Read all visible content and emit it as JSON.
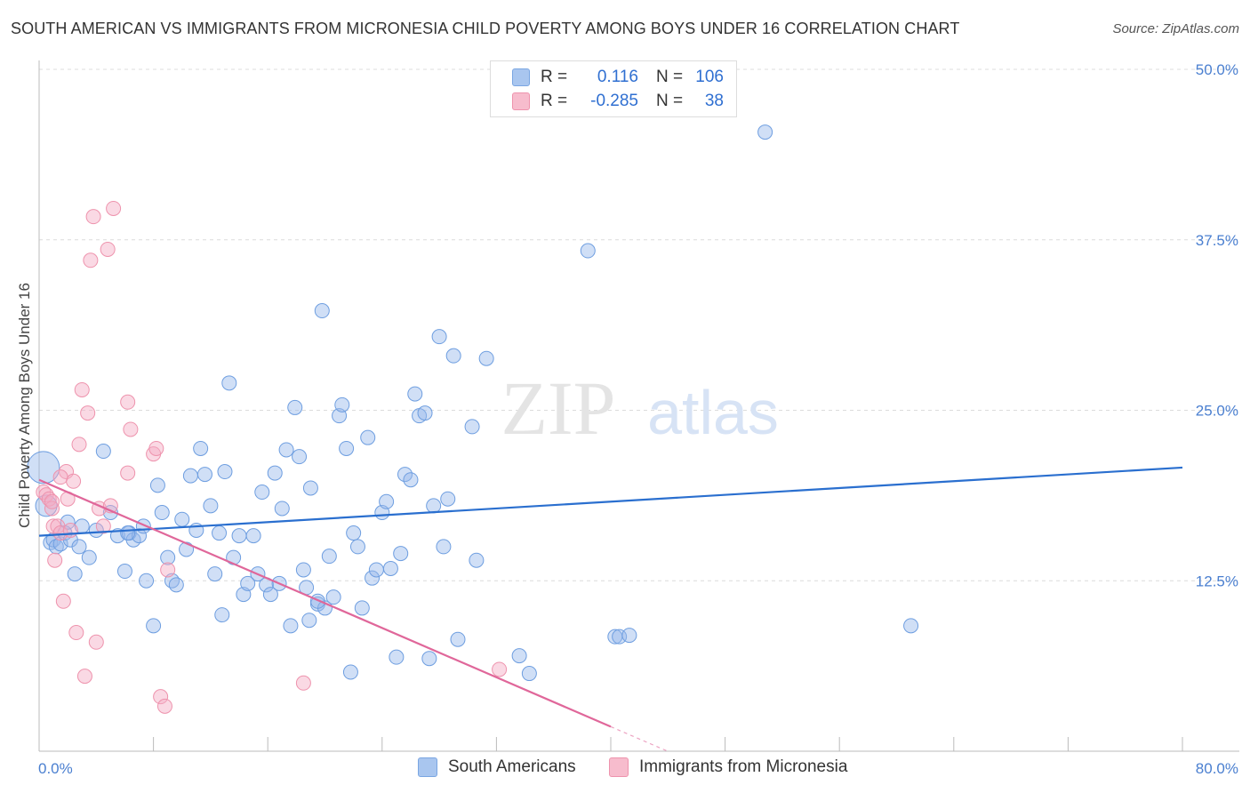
{
  "title": "SOUTH AMERICAN VS IMMIGRANTS FROM MICRONESIA CHILD POVERTY AMONG BOYS UNDER 16 CORRELATION CHART",
  "source": "Source: ZipAtlas.com",
  "watermark": {
    "zip": "ZIP",
    "atlas": "atlas"
  },
  "legend_top": [
    {
      "r_label": "R =",
      "r_value": "0.116",
      "n_label": "N =",
      "n_value": "106",
      "color": "#a9c6ef",
      "border": "#7aa6e2"
    },
    {
      "r_label": "R =",
      "r_value": "-0.285",
      "n_label": "N =",
      "n_value": "38",
      "color": "#f7bccd",
      "border": "#ee93ad"
    }
  ],
  "legend_bottom": [
    {
      "label": "South Americans",
      "color": "#a9c6ef",
      "border": "#7aa6e2"
    },
    {
      "label": "Immigrants from Micronesia",
      "color": "#f7bccd",
      "border": "#ee93ad"
    }
  ],
  "colors": {
    "blue_fill": "rgba(150,185,235,0.45)",
    "blue_stroke": "#6e9ee0",
    "blue_line": "#2a6fcf",
    "pink_fill": "rgba(245,170,195,0.45)",
    "pink_stroke": "#ee93ad",
    "pink_line": "#e0679a",
    "grid": "#dcdcdc",
    "axis_text": "#4a7fd0"
  },
  "chart_data": {
    "type": "scatter",
    "title": "SOUTH AMERICAN VS IMMIGRANTS FROM MICRONESIA CHILD POVERTY AMONG BOYS UNDER 16 CORRELATION CHART",
    "xlabel": "",
    "ylabel": "Child Poverty Among Boys Under 16",
    "xlim": [
      0,
      80
    ],
    "ylim": [
      0,
      50
    ],
    "x_tick_labels": [
      "0.0%",
      "80.0%"
    ],
    "y_ticks": [
      12.5,
      25.0,
      37.5,
      50.0
    ],
    "y_tick_labels": [
      "12.5%",
      "25.0%",
      "37.5%",
      "50.0%"
    ],
    "grid": true,
    "series": [
      {
        "name": "South Americans",
        "points": [
          [
            0.3,
            20.8
          ],
          [
            0.5,
            18.0
          ],
          [
            0.8,
            15.3
          ],
          [
            1.0,
            15.5
          ],
          [
            1.2,
            15.0
          ],
          [
            1.5,
            15.2
          ],
          [
            1.8,
            16.0
          ],
          [
            2.0,
            16.8
          ],
          [
            2.2,
            15.5
          ],
          [
            2.5,
            13.0
          ],
          [
            2.8,
            15.0
          ],
          [
            3.0,
            16.5
          ],
          [
            3.5,
            14.2
          ],
          [
            4.0,
            16.2
          ],
          [
            4.5,
            22.0
          ],
          [
            5.0,
            17.5
          ],
          [
            5.5,
            15.8
          ],
          [
            6.0,
            13.2
          ],
          [
            6.3,
            16.0
          ],
          [
            6.6,
            15.5
          ],
          [
            7.0,
            15.8
          ],
          [
            7.3,
            16.5
          ],
          [
            7.5,
            12.5
          ],
          [
            8.0,
            9.2
          ],
          [
            8.3,
            19.5
          ],
          [
            8.6,
            17.5
          ],
          [
            9.0,
            14.2
          ],
          [
            9.3,
            12.5
          ],
          [
            9.6,
            12.2
          ],
          [
            10.0,
            17.0
          ],
          [
            10.3,
            14.8
          ],
          [
            10.6,
            20.2
          ],
          [
            11.0,
            16.2
          ],
          [
            11.3,
            22.2
          ],
          [
            11.6,
            20.3
          ],
          [
            12.0,
            18.0
          ],
          [
            12.3,
            13.0
          ],
          [
            12.6,
            16.0
          ],
          [
            12.8,
            10.0
          ],
          [
            13.0,
            20.5
          ],
          [
            13.3,
            27.0
          ],
          [
            13.6,
            14.2
          ],
          [
            14.0,
            15.8
          ],
          [
            14.3,
            11.5
          ],
          [
            14.6,
            12.3
          ],
          [
            15.0,
            15.8
          ],
          [
            15.3,
            13.0
          ],
          [
            15.6,
            19.0
          ],
          [
            15.9,
            12.2
          ],
          [
            16.2,
            11.5
          ],
          [
            16.5,
            20.4
          ],
          [
            16.8,
            12.3
          ],
          [
            17.0,
            17.8
          ],
          [
            17.3,
            22.1
          ],
          [
            17.6,
            9.2
          ],
          [
            17.9,
            25.2
          ],
          [
            18.2,
            21.6
          ],
          [
            18.5,
            13.3
          ],
          [
            18.7,
            12.0
          ],
          [
            19.0,
            19.3
          ],
          [
            18.9,
            9.6
          ],
          [
            19.5,
            10.8
          ],
          [
            19.8,
            32.3
          ],
          [
            20.0,
            10.5
          ],
          [
            20.3,
            14.3
          ],
          [
            20.6,
            11.3
          ],
          [
            21.0,
            24.6
          ],
          [
            21.2,
            25.4
          ],
          [
            21.5,
            22.2
          ],
          [
            21.8,
            5.8
          ],
          [
            22.0,
            16.0
          ],
          [
            22.3,
            15.0
          ],
          [
            22.6,
            10.5
          ],
          [
            23.0,
            23.0
          ],
          [
            23.3,
            12.7
          ],
          [
            23.6,
            13.3
          ],
          [
            24.0,
            17.5
          ],
          [
            24.3,
            18.3
          ],
          [
            24.6,
            13.4
          ],
          [
            25.0,
            6.9
          ],
          [
            25.3,
            14.5
          ],
          [
            25.6,
            20.3
          ],
          [
            26.0,
            19.9
          ],
          [
            26.3,
            26.2
          ],
          [
            26.6,
            24.6
          ],
          [
            27.0,
            24.8
          ],
          [
            27.3,
            6.8
          ],
          [
            27.6,
            18.0
          ],
          [
            28.0,
            30.4
          ],
          [
            28.3,
            15.0
          ],
          [
            28.6,
            18.5
          ],
          [
            29.0,
            29.0
          ],
          [
            29.3,
            8.2
          ],
          [
            30.3,
            23.8
          ],
          [
            30.6,
            14.0
          ],
          [
            31.3,
            28.8
          ],
          [
            33.6,
            7.0
          ],
          [
            34.3,
            5.7
          ],
          [
            38.4,
            36.7
          ],
          [
            40.3,
            8.4
          ],
          [
            40.6,
            8.4
          ],
          [
            41.3,
            8.5
          ],
          [
            50.8,
            45.4
          ],
          [
            61.0,
            9.2
          ],
          [
            6.2,
            16.0
          ],
          [
            19.5,
            11.0
          ]
        ]
      },
      {
        "name": "Immigrants from Micronesia",
        "points": [
          [
            0.3,
            19.0
          ],
          [
            0.5,
            18.8
          ],
          [
            0.7,
            18.5
          ],
          [
            0.9,
            17.8
          ],
          [
            1.0,
            16.5
          ],
          [
            1.1,
            14.0
          ],
          [
            1.3,
            16.5
          ],
          [
            1.5,
            16.0
          ],
          [
            1.7,
            11.0
          ],
          [
            1.9,
            20.5
          ],
          [
            2.0,
            18.5
          ],
          [
            2.2,
            16.2
          ],
          [
            2.4,
            19.8
          ],
          [
            2.6,
            8.7
          ],
          [
            2.8,
            22.5
          ],
          [
            3.0,
            26.5
          ],
          [
            3.2,
            5.5
          ],
          [
            3.4,
            24.8
          ],
          [
            3.6,
            36.0
          ],
          [
            3.8,
            39.2
          ],
          [
            4.0,
            8.0
          ],
          [
            4.2,
            17.8
          ],
          [
            4.5,
            16.5
          ],
          [
            4.8,
            36.8
          ],
          [
            5.0,
            18.0
          ],
          [
            5.2,
            39.8
          ],
          [
            6.2,
            20.4
          ],
          [
            6.4,
            23.6
          ],
          [
            8.0,
            21.8
          ],
          [
            8.2,
            22.2
          ],
          [
            8.5,
            4.0
          ],
          [
            8.8,
            3.3
          ],
          [
            9.0,
            13.3
          ],
          [
            18.5,
            5.0
          ],
          [
            32.2,
            6.0
          ],
          [
            0.9,
            18.3
          ],
          [
            6.2,
            25.6
          ],
          [
            1.5,
            20.1
          ]
        ]
      }
    ],
    "trendlines": [
      {
        "series": "South Americans",
        "x": [
          0,
          80
        ],
        "y": [
          15.8,
          20.8
        ]
      },
      {
        "series": "Immigrants from Micronesia",
        "x": [
          0,
          40
        ],
        "y": [
          19.9,
          1.8
        ],
        "dashed_extension_to_x": 44
      }
    ]
  }
}
